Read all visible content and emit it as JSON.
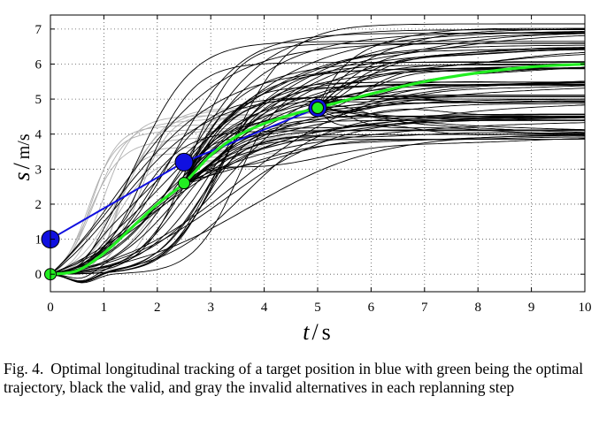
{
  "chart_data": {
    "type": "line",
    "xlabel_var": "t",
    "xlabel_unit": "s",
    "ylabel_var": "s",
    "ylabel_unit": "m/s",
    "xlim": [
      0,
      10
    ],
    "ylim": [
      -0.5,
      7.4
    ],
    "xticks": [
      0,
      1,
      2,
      3,
      4,
      5,
      6,
      7,
      8,
      9,
      10
    ],
    "yticks": [
      0,
      1,
      2,
      3,
      4,
      5,
      6,
      7
    ],
    "grid": "dotted",
    "series": [
      {
        "role": "target",
        "color": "#1010e0",
        "points": [
          [
            0,
            1.0
          ],
          [
            2.5,
            3.2
          ],
          [
            5.0,
            4.75
          ]
        ]
      },
      {
        "role": "optimal",
        "color": "#22ee22",
        "points": [
          [
            0,
            0
          ],
          [
            0.5,
            0.1
          ],
          [
            1.0,
            0.6
          ],
          [
            1.5,
            1.3
          ],
          [
            2.0,
            2.0
          ],
          [
            2.5,
            2.6
          ],
          [
            3.0,
            3.4
          ],
          [
            3.5,
            3.95
          ],
          [
            4.0,
            4.3
          ],
          [
            4.5,
            4.55
          ],
          [
            5.0,
            4.75
          ],
          [
            6.0,
            5.15
          ],
          [
            7.0,
            5.5
          ],
          [
            8.0,
            5.75
          ],
          [
            9.0,
            5.92
          ],
          [
            10.0,
            6.0
          ]
        ]
      }
    ],
    "markers": [
      {
        "color": "#1010e0",
        "x": 0,
        "y": 1.0
      },
      {
        "color": "#1010e0",
        "x": 2.5,
        "y": 3.2
      },
      {
        "color": "#1010e0",
        "x": 5.0,
        "y": 4.75
      },
      {
        "color": "#22ee22",
        "x": 0,
        "y": 0
      },
      {
        "color": "#22ee22",
        "x": 2.5,
        "y": 2.6
      },
      {
        "color": "#22ee22",
        "x": 5.0,
        "y": 4.75
      }
    ],
    "valid_color": "#000000",
    "invalid_color": "#b0b0b0",
    "valid_finals": [
      4.0,
      4.5,
      5.0,
      5.5,
      6.0,
      6.5,
      7.0
    ]
  },
  "caption": {
    "label": "Fig. 4.",
    "text": "Optimal longitudinal tracking of a target position in blue with green being the optimal trajectory, black the valid, and gray the invalid alternatives in each replanning step"
  }
}
